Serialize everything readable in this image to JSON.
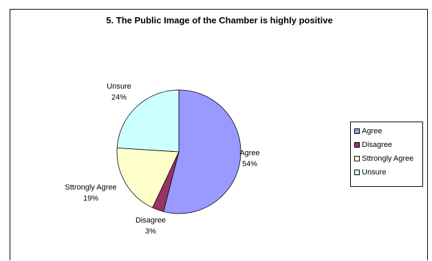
{
  "chart_data": {
    "type": "pie",
    "title": "5. The Public Image of the Chamber is highly positive",
    "slices": [
      {
        "name": "Agree",
        "value": 54,
        "label": "Agree",
        "percent_label": "54%",
        "color": "#9999ff"
      },
      {
        "name": "Disagree",
        "value": 3,
        "label": "Disagree",
        "percent_label": "3%",
        "color": "#993366"
      },
      {
        "name": "Sttrongly Agree",
        "value": 19,
        "label": "Sttrongly Agree",
        "percent_label": "19%",
        "color": "#ffffcc"
      },
      {
        "name": "Unsure",
        "value": 24,
        "label": "Unsure",
        "percent_label": "24%",
        "color": "#ccffff"
      }
    ],
    "legend": {
      "placement": "right",
      "entries": [
        "Agree",
        "Disagree",
        "Sttrongly Agree",
        "Unsure"
      ]
    }
  }
}
